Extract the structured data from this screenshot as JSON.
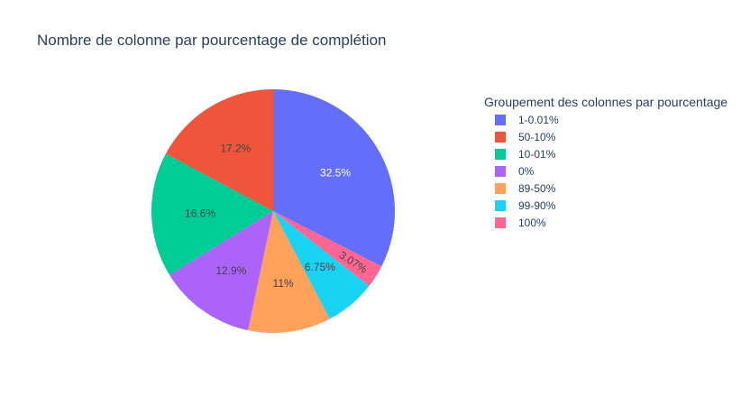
{
  "chart_data": {
    "type": "pie",
    "title": "Nombre de colonne par pourcentage de complétion",
    "legend": {
      "title": "Groupement des colonnes par pourcentage",
      "position": "right"
    },
    "slices": [
      {
        "label": "1-0.01%",
        "percent": 32.5,
        "text": "32.5%",
        "color": "#636efa"
      },
      {
        "label": "100%",
        "percent": 3.07,
        "text": "3.07%",
        "color": "#ff6692"
      },
      {
        "label": "99-90%",
        "percent": 6.75,
        "text": "6.75%",
        "color": "#19d3f3"
      },
      {
        "label": "89-50%",
        "percent": 11.0,
        "text": "11%",
        "color": "#ffa15a"
      },
      {
        "label": "0%",
        "percent": 12.9,
        "text": "12.9%",
        "color": "#ab63fa"
      },
      {
        "label": "10-01%",
        "percent": 16.6,
        "text": "16.6%",
        "color": "#00cc96"
      },
      {
        "label": "50-10%",
        "percent": 17.2,
        "text": "17.2%",
        "color": "#ef553b"
      }
    ],
    "legend_order": [
      "1-0.01%",
      "50-10%",
      "10-01%",
      "0%",
      "89-50%",
      "99-90%",
      "100%"
    ],
    "direction": "clockwise",
    "start": "top"
  }
}
